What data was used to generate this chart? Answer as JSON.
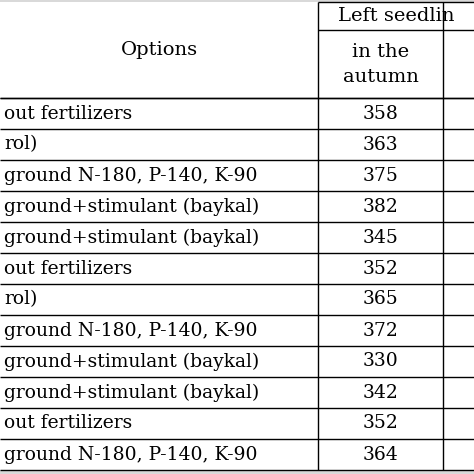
{
  "col1_header": "Options",
  "col2_header_top": "Left seedlin",
  "col2_sub_header": "in the\nautumn",
  "rows": [
    [
      "out fertilizers",
      "358"
    ],
    [
      "rol)",
      "363"
    ],
    [
      "ground N-180, P-140, K-90",
      "375"
    ],
    [
      "ground+stimulant (baykal)",
      "382"
    ],
    [
      "ground+stimulant (baykal)",
      "345"
    ],
    [
      "out fertilizers",
      "352"
    ],
    [
      "rol)",
      "365"
    ],
    [
      "ground N-180, P-140, K-90",
      "372"
    ],
    [
      "ground+stimulant (baykal)",
      "330"
    ],
    [
      "ground+stimulant (baykal)",
      "342"
    ],
    [
      "out fertilizers",
      "352"
    ],
    [
      "ground N-180, P-140, K-90",
      "364"
    ]
  ],
  "bg_color": "#d9d9d9",
  "table_bg": "#ffffff",
  "line_color": "#000000",
  "font_size": 13.5,
  "header_font_size": 14
}
